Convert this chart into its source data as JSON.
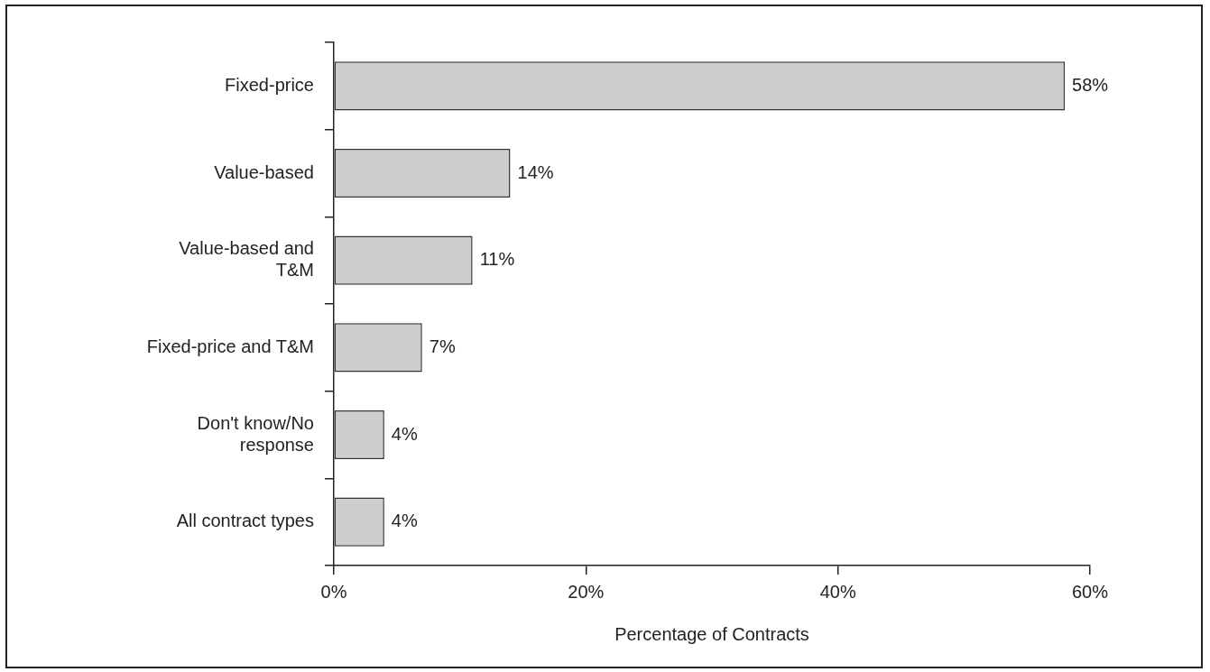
{
  "chart_data": {
    "type": "bar",
    "orientation": "horizontal",
    "xlabel": "Percentage of Contracts",
    "categories": [
      "Fixed-price",
      "Value-based",
      "Value-based and\nT&M",
      "Fixed-price and T&M",
      "Don't know/No\nresponse",
      "All contract types"
    ],
    "values": [
      58,
      14,
      11,
      7,
      4,
      4
    ],
    "value_labels": [
      "58%",
      "14%",
      "11%",
      "7%",
      "4%",
      "4%"
    ],
    "color": "#cdcdcd",
    "xlim": [
      0,
      60
    ],
    "xticks": [
      {
        "value": 0,
        "label": "0%"
      },
      {
        "value": 20,
        "label": "20%"
      },
      {
        "value": 40,
        "label": "40%"
      },
      {
        "value": 60,
        "label": "60%"
      }
    ],
    "grid": false,
    "legend": false
  }
}
